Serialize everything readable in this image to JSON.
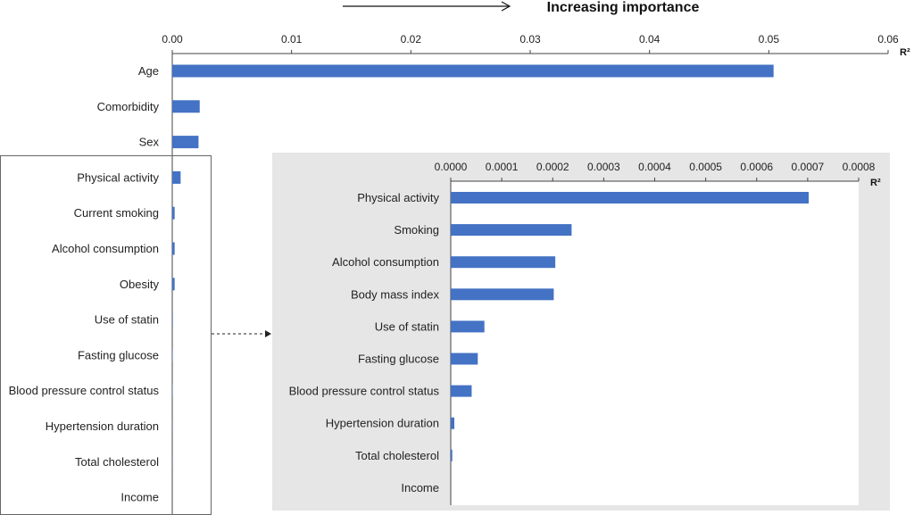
{
  "header": {
    "arrow_label": "Increasing importance"
  },
  "chart_data": [
    {
      "id": "main",
      "type": "bar",
      "orientation": "horizontal",
      "xlabel": "R²",
      "xlim": [
        0,
        0.06
      ],
      "xticks": [
        "0.00",
        "0.01",
        "0.02",
        "0.03",
        "0.04",
        "0.05",
        "0.06"
      ],
      "xtick_values": [
        0,
        0.01,
        0.02,
        0.03,
        0.04,
        0.05,
        0.06
      ],
      "categories": [
        "Age",
        "Comorbidity",
        "Sex",
        "Physical activity",
        "Current smoking",
        "Alcohol consumption ",
        "Obesity",
        "Use of statin",
        "Fasting glucose",
        "Blood pressure control status",
        "Hypertension duration",
        "Total cholesterol",
        "Income"
      ],
      "values": [
        0.0504,
        0.0023,
        0.0022,
        0.0007,
        0.0002,
        0.0002,
        0.0002,
        5e-05,
        4e-05,
        3e-05,
        1e-05,
        1e-05,
        0
      ],
      "color": "#4472C4"
    },
    {
      "id": "inset",
      "type": "bar",
      "orientation": "horizontal",
      "xlabel": "R²",
      "xlim": [
        0,
        0.0008
      ],
      "xticks": [
        "0.0000",
        "0.0001",
        "0.0002",
        "0.0003",
        "0.0004",
        "0.0005",
        "0.0006",
        "0.0007",
        "0.0008"
      ],
      "xtick_values": [
        0,
        0.0001,
        0.0002,
        0.0003,
        0.0004,
        0.0005,
        0.0006,
        0.0007,
        0.0008
      ],
      "categories": [
        "Physical activity",
        "Smoking",
        "Alcohol consumption",
        "Body mass index",
        "Use of statin",
        "Fasting glucose",
        "Blood pressure control status",
        "Hypertension duration",
        "Total cholesterol",
        "Income"
      ],
      "values": [
        0.000702,
        0.000237,
        0.000205,
        0.000202,
        6.6e-05,
        5.3e-05,
        4.1e-05,
        7e-06,
        3e-06,
        0
      ],
      "color": "#4472C4",
      "background": "#E6E6E6"
    }
  ]
}
